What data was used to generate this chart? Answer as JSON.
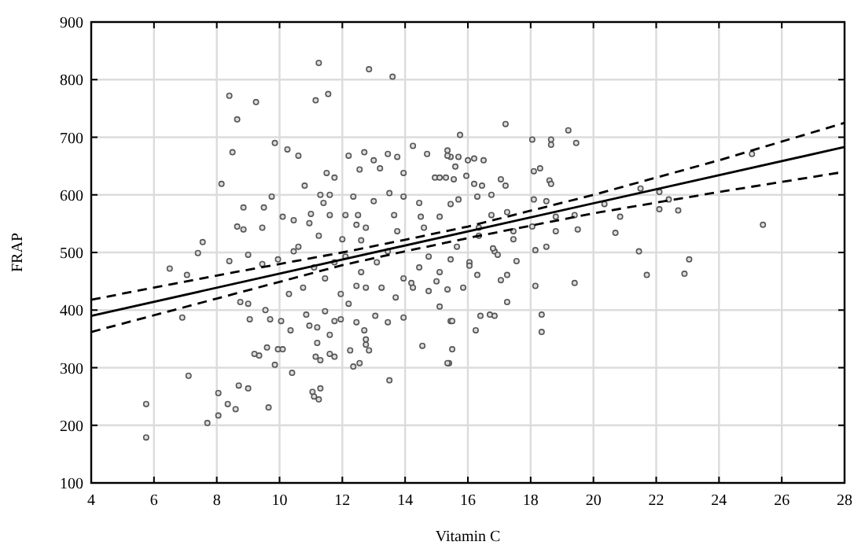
{
  "chart_data": {
    "type": "scatter",
    "xlabel": "Vitamin C",
    "ylabel": "FRAP",
    "xlim": [
      4,
      28
    ],
    "ylim": [
      100,
      900
    ],
    "xticks": [
      4,
      6,
      8,
      10,
      12,
      14,
      16,
      18,
      20,
      22,
      24,
      26,
      28
    ],
    "yticks": [
      100,
      200,
      300,
      400,
      500,
      600,
      700,
      800,
      900
    ],
    "grid": true,
    "series": [
      {
        "color": "#555555",
        "marker": "circle",
        "x": [
          11.25,
          12.85,
          13.6,
          8.4,
          9.25,
          11.15,
          11.55,
          8.65,
          8.5,
          9.85,
          10.25,
          10.6,
          8.15,
          10.8,
          8.85,
          9.5,
          9.75,
          8.65,
          8.85,
          9.45,
          7.55,
          5.75,
          5.75,
          7.1,
          7.7,
          8.05,
          8.05,
          8.35,
          8.6,
          8.7,
          9,
          9.65,
          9.2,
          9.35,
          9.6,
          9.85,
          9.95,
          10.1,
          10.4,
          11.05,
          11.1,
          11.25,
          11.3,
          11.15,
          11.3,
          11.6,
          11.75,
          12.35,
          12.55,
          12.25,
          12.75,
          12.85,
          13.5,
          14.55,
          15.4,
          6.9,
          6.5,
          7.4,
          7.05,
          8.75,
          9,
          9.05,
          9.55,
          9.7,
          10.05,
          10.35,
          10.3,
          10.85,
          10.95,
          11.2,
          11.2,
          11.45,
          11.75,
          11.95,
          11.6,
          12.2,
          12.45,
          12.7,
          12.75,
          13.05,
          13.45,
          13.95,
          14.2,
          14.25,
          14.75,
          15,
          15.1,
          15.45,
          15.45,
          13.7,
          12.75,
          21.45,
          21.7,
          22.9,
          23.05,
          19.4,
          18.15,
          18.5,
          18.15,
          18.35,
          18.35,
          17.55,
          17.25,
          17.05,
          17.25,
          16.7,
          16.85,
          16.4,
          16.25,
          16.3,
          15.85,
          15.35,
          15.5,
          15.5,
          15.35,
          16.05,
          16.05,
          16.85,
          16.95,
          15.65,
          17.2,
          19.2,
          15.75,
          18.05,
          18.65,
          18.65,
          19.45,
          25.05,
          25.4,
          18.1,
          18.3,
          18.6,
          18.65,
          22.1,
          22.1,
          22.4,
          22.7,
          21.5,
          20.35,
          20.85,
          20.7,
          19.5,
          18.8,
          19.4,
          18.8,
          18.1,
          18.5,
          17.05,
          17.2,
          16.5,
          16.2,
          16,
          15.35,
          15.45,
          15.7,
          15.6,
          15.3,
          15.55,
          15.95,
          16.2,
          16.45,
          16.3,
          16.75,
          15.7,
          15.45,
          16.75,
          17.25,
          17.45,
          18.05,
          17.45,
          16.35,
          16.35,
          16.8,
          12.2,
          12.7,
          13,
          13.45,
          13.75,
          14.25,
          14.7,
          15.35,
          12.55,
          13.2,
          13.95,
          11.75,
          11.5,
          12.35,
          13,
          13.5,
          13.95,
          14.45,
          14.95,
          15.1,
          11.3,
          11.6,
          11.4,
          11,
          11.6,
          12.1,
          12.5,
          13.65,
          14.5,
          15.1,
          10.45,
          10.95,
          10.1,
          12.45,
          12.75,
          12,
          12.6,
          13.75,
          14.6,
          10.6,
          11.25,
          8.4,
          9,
          9.45,
          9.95,
          10.45,
          11.1,
          11.45,
          11.75,
          12.1,
          12.6,
          13.1,
          13.45,
          13.95,
          14.45,
          14.75,
          15.1,
          10.75,
          11.95,
          12.45,
          13.25
        ],
        "values": [
          829,
          818,
          805,
          772,
          761,
          764,
          775,
          731,
          674,
          690,
          679,
          668,
          619,
          616,
          578,
          578,
          597,
          545,
          540,
          543,
          518,
          237,
          179,
          286,
          204,
          256,
          217,
          237,
          228,
          269,
          264,
          231,
          324,
          321,
          335,
          305,
          332,
          332,
          291,
          258,
          250,
          245,
          264,
          319,
          313,
          324,
          319,
          302,
          308,
          330,
          349,
          330,
          278,
          338,
          308,
          387,
          472,
          499,
          461,
          414,
          411,
          384,
          400,
          384,
          381,
          365,
          428,
          392,
          373,
          370,
          343,
          398,
          381,
          384,
          357,
          411,
          379,
          365,
          340,
          390,
          379,
          387,
          447,
          439,
          433,
          450,
          406,
          381,
          488,
          422,
          439,
          502,
          461,
          463,
          488,
          447,
          504,
          510,
          442,
          392,
          362,
          485,
          461,
          452,
          414,
          392,
          390,
          390,
          365,
          461,
          439,
          436,
          381,
          332,
          308,
          483,
          477,
          502,
          496,
          510,
          723,
          712,
          704,
          696,
          696,
          687,
          690,
          671,
          548,
          641,
          646,
          625,
          619,
          605,
          575,
          592,
          573,
          611,
          584,
          562,
          534,
          540,
          537,
          565,
          562,
          592,
          589,
          627,
          616,
          660,
          663,
          660,
          677,
          666,
          666,
          649,
          630,
          627,
          633,
          619,
          616,
          597,
          600,
          592,
          584,
          565,
          570,
          537,
          545,
          523,
          543,
          529,
          507,
          668,
          674,
          660,
          671,
          666,
          685,
          671,
          668,
          644,
          646,
          638,
          630,
          638,
          597,
          589,
          603,
          597,
          586,
          630,
          630,
          600,
          600,
          586,
          567,
          565,
          565,
          565,
          565,
          562,
          562,
          556,
          551,
          562,
          548,
          543,
          523,
          521,
          537,
          543,
          510,
          529,
          485,
          496,
          480,
          488,
          502,
          474,
          455,
          483,
          493,
          466,
          483,
          502,
          455,
          474,
          493,
          466,
          439,
          428,
          442,
          439
        ]
      },
      {
        "type": "line",
        "color": "#000000",
        "marker": "none",
        "line_style": "solid",
        "x": [
          4,
          28
        ],
        "values": [
          390,
          683
        ]
      },
      {
        "type": "line",
        "color": "#000000",
        "marker": "none",
        "line_style": "dashed",
        "x": [
          4,
          8,
          12,
          14,
          16,
          20,
          24,
          28
        ],
        "values": [
          418,
          460,
          500,
          522,
          545,
          600,
          660,
          725
        ]
      },
      {
        "type": "line",
        "color": "#000000",
        "marker": "none",
        "line_style": "dashed",
        "x": [
          4,
          8,
          12,
          14,
          16,
          20,
          24,
          28
        ],
        "values": [
          362,
          420,
          478,
          502,
          525,
          568,
          605,
          640
        ]
      }
    ]
  }
}
